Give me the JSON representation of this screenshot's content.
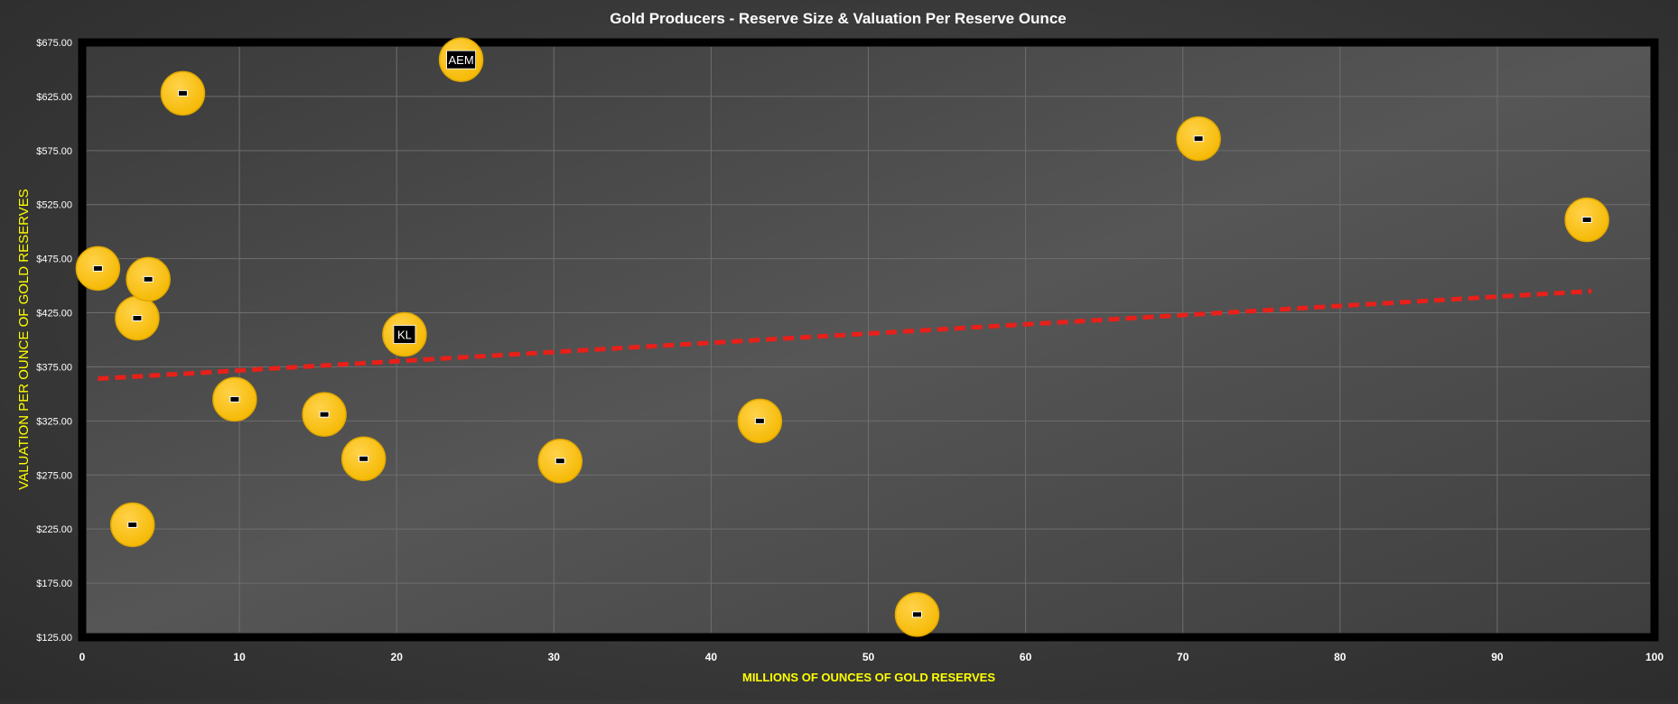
{
  "chart_data": {
    "type": "scatter",
    "title": "Gold Producers - Reserve Size & Valuation Per Reserve Ounce",
    "xlabel": "MILLIONS OF OUNCES OF GOLD RESERVES",
    "ylabel": "VALUATION PER OUNCE OF GOLD RESERVES",
    "xlim": [
      0,
      100
    ],
    "ylim": [
      125,
      675
    ],
    "x_ticks": [
      "0",
      "10",
      "20",
      "30",
      "40",
      "50",
      "60",
      "70",
      "80",
      "90",
      "100"
    ],
    "x_tick_values": [
      0,
      10,
      20,
      30,
      40,
      50,
      60,
      70,
      80,
      90,
      100
    ],
    "y_ticks": [
      "$125.00",
      "$175.00",
      "$225.00",
      "$275.00",
      "$325.00",
      "$375.00",
      "$425.00",
      "$475.00",
      "$525.00",
      "$575.00",
      "$625.00",
      "$675.00"
    ],
    "y_tick_values": [
      125,
      175,
      225,
      275,
      325,
      375,
      425,
      475,
      525,
      575,
      625,
      675
    ],
    "grid": true,
    "points": [
      {
        "x": 1.0,
        "y": 466,
        "label": ""
      },
      {
        "x": 3.2,
        "y": 229,
        "label": ""
      },
      {
        "x": 3.5,
        "y": 420,
        "label": ""
      },
      {
        "x": 4.2,
        "y": 456,
        "label": ""
      },
      {
        "x": 6.4,
        "y": 628,
        "label": ""
      },
      {
        "x": 9.7,
        "y": 345,
        "label": ""
      },
      {
        "x": 15.4,
        "y": 331,
        "label": ""
      },
      {
        "x": 17.9,
        "y": 290,
        "label": ""
      },
      {
        "x": 20.5,
        "y": 405,
        "label": "KL"
      },
      {
        "x": 24.1,
        "y": 659,
        "label": "AEM"
      },
      {
        "x": 30.4,
        "y": 288,
        "label": ""
      },
      {
        "x": 43.1,
        "y": 325,
        "label": ""
      },
      {
        "x": 53.1,
        "y": 146,
        "label": ""
      },
      {
        "x": 71.0,
        "y": 586,
        "label": ""
      },
      {
        "x": 95.7,
        "y": 511,
        "label": ""
      }
    ],
    "trendline": {
      "x": [
        1,
        96
      ],
      "y": [
        364,
        445
      ],
      "style": "dashed"
    },
    "colors": {
      "marker_fill": "#FFC000",
      "marker_edge": "#E0A800",
      "trendline": "#E8201A",
      "axis_title": "#FFFF00",
      "title_text": "#FFFFFF",
      "tick_text": "#FFFFFF",
      "plot_border": "#000000",
      "grid": "#6e6e6e"
    }
  }
}
